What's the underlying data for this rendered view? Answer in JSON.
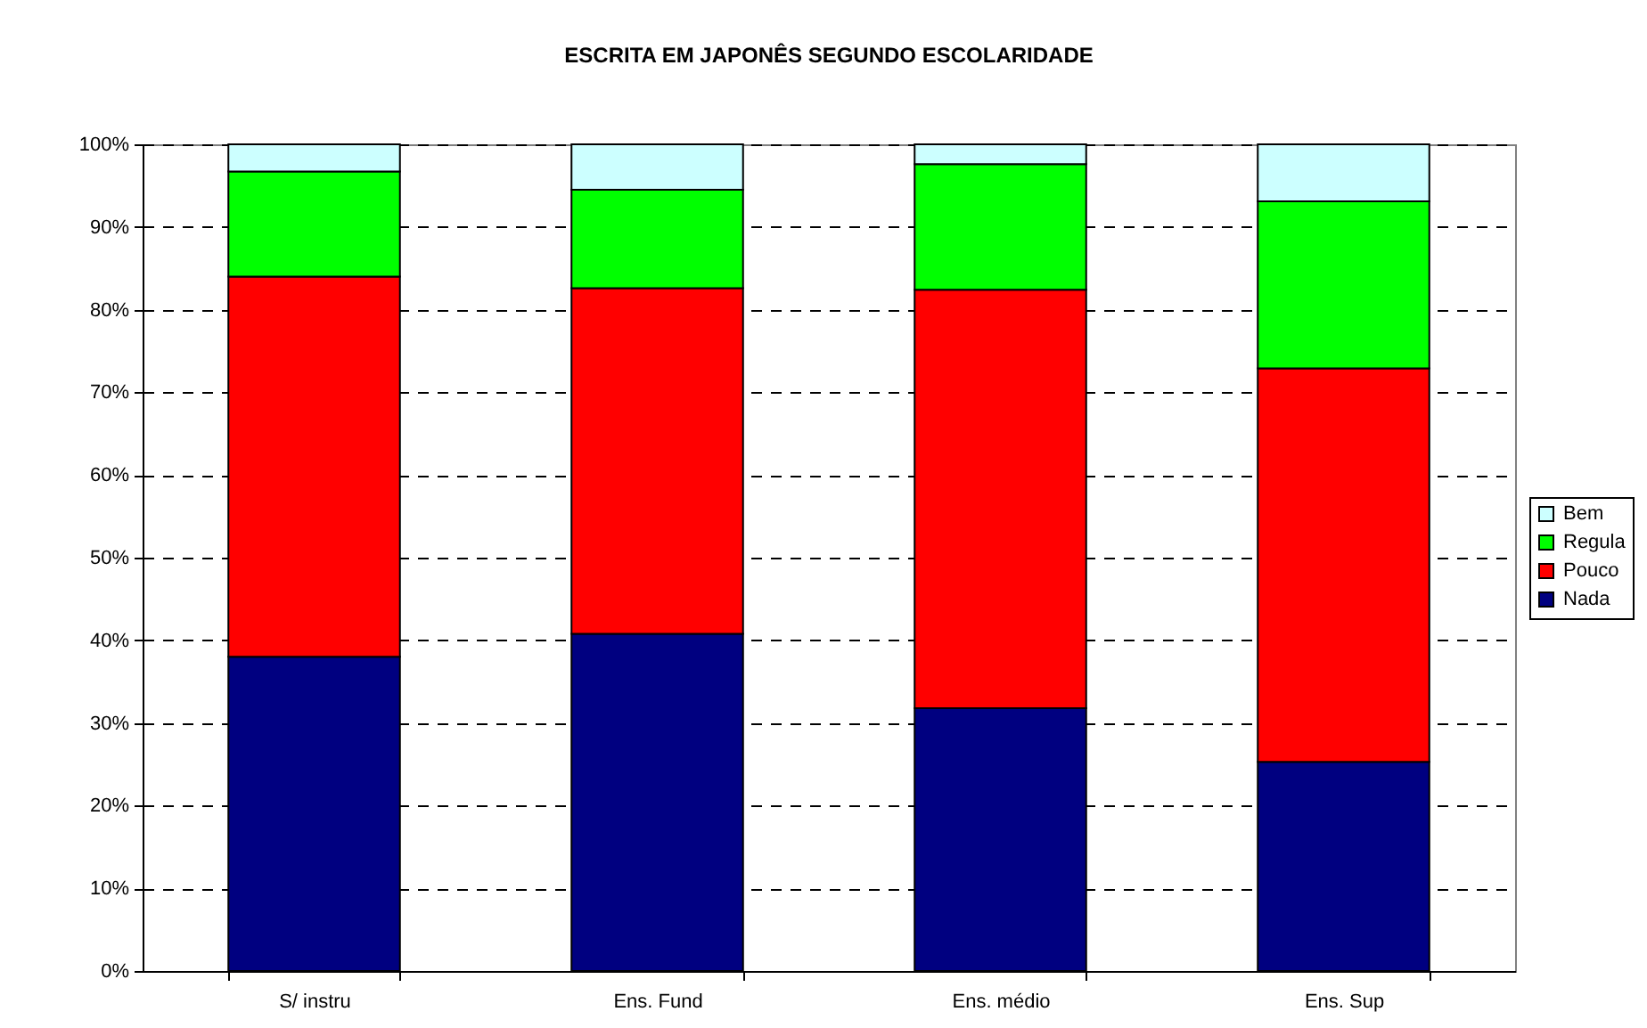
{
  "chart_data": {
    "type": "bar",
    "title": "ESCRITA EM JAPONÊS SEGUNDO ESCOLARIDADE",
    "categories": [
      "S/ instru",
      "Ens. Fund",
      "Ens. médio",
      "Ens. Sup"
    ],
    "series": [
      {
        "name": "Nada",
        "color": "#000080",
        "values": [
          38.0,
          40.8,
          31.8,
          25.3
        ]
      },
      {
        "name": "Pouco",
        "color": "#ff0000",
        "values": [
          46.0,
          41.8,
          50.6,
          47.6
        ]
      },
      {
        "name": "Regula",
        "color": "#00ff00",
        "values": [
          12.7,
          11.9,
          15.2,
          20.2
        ]
      },
      {
        "name": "Bem",
        "color": "#ccffff",
        "values": [
          3.3,
          5.5,
          2.4,
          6.9
        ]
      }
    ],
    "stacked": true,
    "ylim": [
      0,
      100
    ],
    "yticks": [
      {
        "value": 0,
        "label": "0%"
      },
      {
        "value": 10,
        "label": "10%"
      },
      {
        "value": 20,
        "label": "20%"
      },
      {
        "value": 30,
        "label": "30%"
      },
      {
        "value": 40,
        "label": "40%"
      },
      {
        "value": 50,
        "label": "50%"
      },
      {
        "value": 60,
        "label": "60%"
      },
      {
        "value": 70,
        "label": "70%"
      },
      {
        "value": 80,
        "label": "80%"
      },
      {
        "value": 90,
        "label": "90%"
      },
      {
        "value": 100,
        "label": "100%"
      }
    ],
    "grid": "y",
    "legend": "right"
  }
}
